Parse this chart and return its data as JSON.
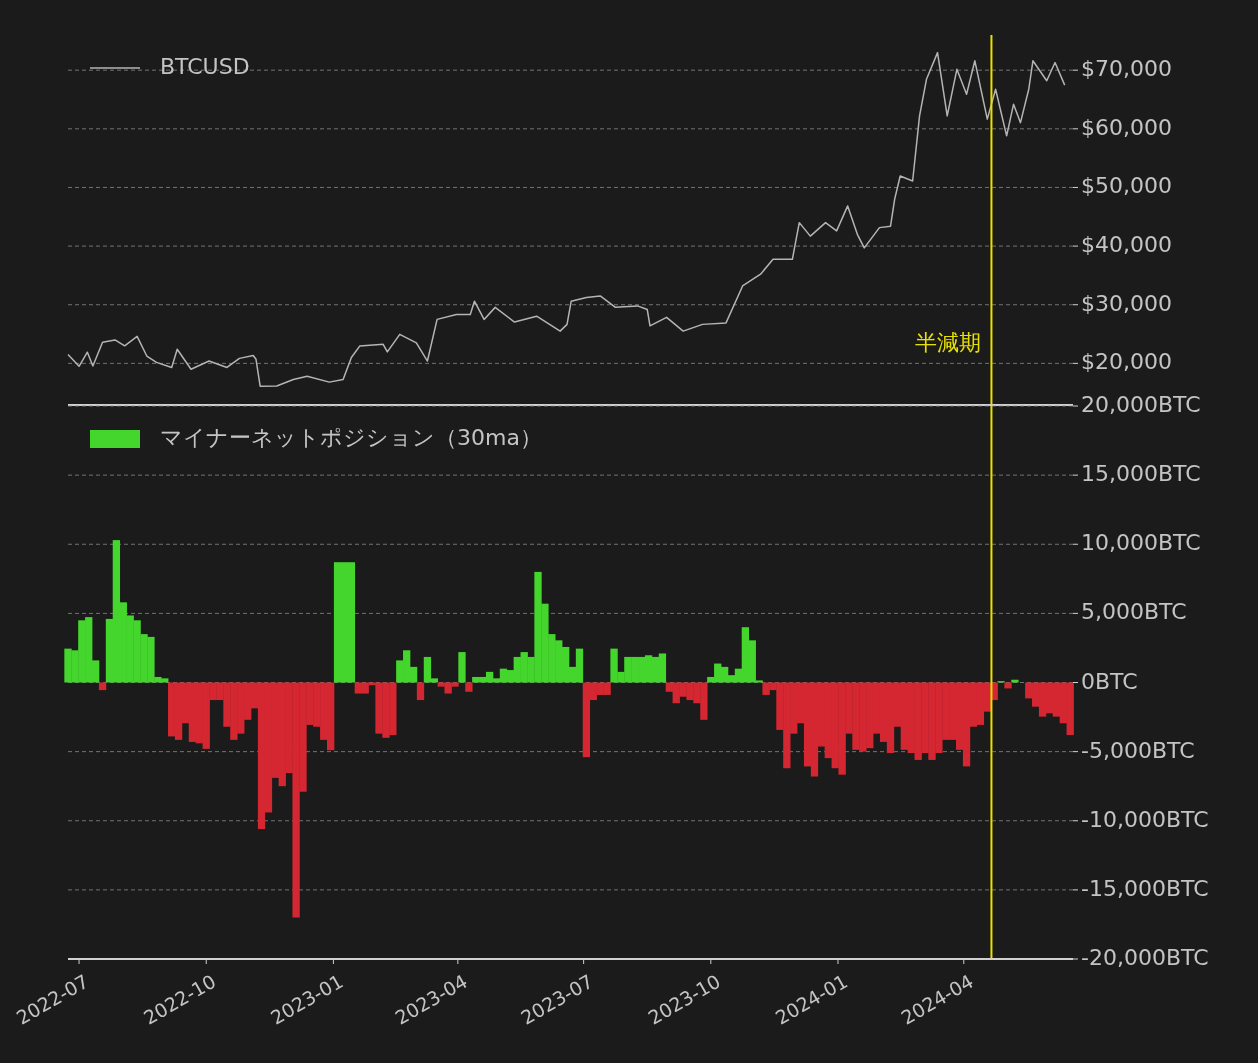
{
  "chart_data": [
    {
      "type": "line",
      "legend": "top left",
      "grid": "y",
      "tick_labels": "y",
      "xlim": [
        "2022-06-23",
        "2024-06-19"
      ],
      "ylim": [
        12900,
        76000
      ],
      "yticks": [
        {
          "value": 20000,
          "label": "$20,000"
        },
        {
          "value": 30000,
          "label": "$30,000"
        },
        {
          "value": 40000,
          "label": "$40,000"
        },
        {
          "value": 50000,
          "label": "$50,000"
        },
        {
          "value": 60000,
          "label": "$60,000"
        },
        {
          "value": 70000,
          "label": "$70,000"
        }
      ],
      "ref_lines": [
        {
          "axis": "x",
          "value": "2024-04-21",
          "label": "半減期",
          "color": "#e8e000"
        }
      ],
      "series": [
        {
          "name": "BTCUSD",
          "color": "#b4b4b4",
          "x": [
            "2022-06-23",
            "2022-07-01",
            "2022-07-07",
            "2022-07-11",
            "2022-07-18",
            "2022-07-27",
            "2022-08-03",
            "2022-08-12",
            "2022-08-19",
            "2022-08-26",
            "2022-09-06",
            "2022-09-10",
            "2022-09-20",
            "2022-10-03",
            "2022-10-16",
            "2022-10-25",
            "2022-11-04",
            "2022-11-06",
            "2022-11-09",
            "2022-11-21",
            "2022-12-03",
            "2022-12-13",
            "2022-12-29",
            "2023-01-08",
            "2023-01-14",
            "2023-01-20",
            "2023-02-06",
            "2023-02-09",
            "2023-02-18",
            "2023-03-02",
            "2023-03-10",
            "2023-03-17",
            "2023-03-31",
            "2023-04-10",
            "2023-04-13",
            "2023-04-20",
            "2023-04-28",
            "2023-05-12",
            "2023-05-28",
            "2023-06-14",
            "2023-06-19",
            "2023-06-22",
            "2023-07-03",
            "2023-07-13",
            "2023-07-24",
            "2023-08-09",
            "2023-08-16",
            "2023-08-18",
            "2023-08-30",
            "2023-09-11",
            "2023-09-25",
            "2023-10-12",
            "2023-10-24",
            "2023-11-06",
            "2023-11-15",
            "2023-11-29",
            "2023-12-04",
            "2023-12-12",
            "2023-12-23",
            "2023-12-31",
            "2024-01-08",
            "2024-01-15",
            "2024-01-20",
            "2024-01-31",
            "2024-02-08",
            "2024-02-11",
            "2024-02-15",
            "2024-02-24",
            "2024-02-29",
            "2024-03-05",
            "2024-03-13",
            "2024-03-20",
            "2024-03-27",
            "2024-04-03",
            "2024-04-09",
            "2024-04-18",
            "2024-04-24",
            "2024-05-02",
            "2024-05-07",
            "2024-05-12",
            "2024-05-18",
            "2024-05-21",
            "2024-05-31",
            "2024-06-06",
            "2024-06-13"
          ],
          "values": [
            21500,
            19500,
            21900,
            19550,
            23600,
            24000,
            23000,
            24600,
            21250,
            20170,
            19300,
            22400,
            19000,
            20400,
            19300,
            20850,
            21350,
            20700,
            16100,
            16150,
            17250,
            17800,
            16800,
            17250,
            21000,
            22950,
            23250,
            21950,
            24950,
            23500,
            20400,
            27500,
            28350,
            28350,
            30600,
            27500,
            29550,
            27050,
            28050,
            25500,
            26650,
            30600,
            31250,
            31500,
            29550,
            29800,
            29200,
            26400,
            27850,
            25500,
            26650,
            26900,
            33200,
            35200,
            37750,
            37750,
            44000,
            41700,
            44000,
            42600,
            46850,
            42000,
            39700,
            43150,
            43400,
            48000,
            51950,
            51100,
            62200,
            68450,
            73000,
            62200,
            70150,
            65900,
            71600,
            61650,
            66750,
            58800,
            64200,
            61050,
            66750,
            71600,
            68200,
            71300,
            67450
          ]
        }
      ]
    },
    {
      "type": "bar",
      "legend": "top left",
      "grid": "y",
      "xlim": [
        "2022-06-23",
        "2024-06-19"
      ],
      "ylim": [
        -20000,
        20000
      ],
      "xticks": [
        "2022-07",
        "2022-10",
        "2023-01",
        "2023-04",
        "2023-07",
        "2023-10",
        "2024-01",
        "2024-04"
      ],
      "yticks": [
        {
          "value": 20000,
          "label": "20,000BTC"
        },
        {
          "value": 15000,
          "label": "15,000BTC"
        },
        {
          "value": 10000,
          "label": "10,000BTC"
        },
        {
          "value": 5000,
          "label": "5,000BTC"
        },
        {
          "value": 0,
          "label": "0BTC"
        },
        {
          "value": -5000,
          "label": "-5,000BTC"
        },
        {
          "value": -10000,
          "label": "-10,000BTC"
        },
        {
          "value": -15000,
          "label": "-15,000BTC"
        },
        {
          "value": -20000,
          "label": "-20,000BTC"
        }
      ],
      "ref_lines": [
        {
          "axis": "x",
          "value": "2024-04-21",
          "color": "#e8e000"
        }
      ],
      "x": [
        "2022-06-23",
        "2022-06-28",
        "2022-07-03",
        "2022-07-08",
        "2022-07-13",
        "2022-07-18",
        "2022-07-23",
        "2022-07-28",
        "2022-08-02",
        "2022-08-07",
        "2022-08-12",
        "2022-08-17",
        "2022-08-22",
        "2022-08-27",
        "2022-09-01",
        "2022-09-06",
        "2022-09-11",
        "2022-09-16",
        "2022-09-21",
        "2022-09-26",
        "2022-10-01",
        "2022-10-06",
        "2022-10-11",
        "2022-10-16",
        "2022-10-21",
        "2022-10-26",
        "2022-10-31",
        "2022-11-05",
        "2022-11-10",
        "2022-11-15",
        "2022-11-20",
        "2022-11-25",
        "2022-11-30",
        "2022-12-05",
        "2022-12-10",
        "2022-12-15",
        "2022-12-20",
        "2022-12-25",
        "2022-12-30",
        "2023-01-04",
        "2023-01-09",
        "2023-01-14",
        "2023-01-19",
        "2023-01-24",
        "2023-01-29",
        "2023-02-03",
        "2023-02-08",
        "2023-02-13",
        "2023-02-18",
        "2023-02-23",
        "2023-02-28",
        "2023-03-05",
        "2023-03-10",
        "2023-03-15",
        "2023-03-20",
        "2023-03-25",
        "2023-03-30",
        "2023-04-04",
        "2023-04-09",
        "2023-04-14",
        "2023-04-19",
        "2023-04-24",
        "2023-04-29",
        "2023-05-04",
        "2023-05-09",
        "2023-05-14",
        "2023-05-19",
        "2023-05-24",
        "2023-05-29",
        "2023-06-03",
        "2023-06-08",
        "2023-06-13",
        "2023-06-18",
        "2023-06-23",
        "2023-06-28",
        "2023-07-03",
        "2023-07-08",
        "2023-07-13",
        "2023-07-18",
        "2023-07-23",
        "2023-07-28",
        "2023-08-02",
        "2023-08-07",
        "2023-08-12",
        "2023-08-17",
        "2023-08-22",
        "2023-08-27",
        "2023-09-01",
        "2023-09-06",
        "2023-09-11",
        "2023-09-16",
        "2023-09-21",
        "2023-09-26",
        "2023-10-01",
        "2023-10-06",
        "2023-10-11",
        "2023-10-16",
        "2023-10-21",
        "2023-10-26",
        "2023-10-31",
        "2023-11-05",
        "2023-11-10",
        "2023-11-15",
        "2023-11-20",
        "2023-11-25",
        "2023-11-30",
        "2023-12-05",
        "2023-12-10",
        "2023-12-15",
        "2023-12-20",
        "2023-12-25",
        "2023-12-30",
        "2024-01-04",
        "2024-01-09",
        "2024-01-14",
        "2024-01-19",
        "2024-01-24",
        "2024-01-29",
        "2024-02-03",
        "2024-02-08",
        "2024-02-13",
        "2024-02-18",
        "2024-02-23",
        "2024-02-28",
        "2024-03-04",
        "2024-03-09",
        "2024-03-14",
        "2024-03-19",
        "2024-03-24",
        "2024-03-29",
        "2024-04-03",
        "2024-04-08",
        "2024-04-13",
        "2024-04-18",
        "2024-04-23",
        "2024-04-28",
        "2024-05-03",
        "2024-05-08",
        "2024-05-13",
        "2024-05-18",
        "2024-05-23",
        "2024-05-28",
        "2024-06-02",
        "2024-06-07",
        "2024-06-12",
        "2024-06-17"
      ],
      "series": [
        {
          "name": "マイナーネットポジション（30ma）",
          "color": "#44d62c",
          "values": [
            2450,
            2330,
            4500,
            4730,
            1600,
            null,
            4600,
            10300,
            5800,
            4850,
            4500,
            3500,
            3300,
            400,
            300,
            null,
            null,
            null,
            null,
            null,
            null,
            null,
            null,
            null,
            null,
            null,
            null,
            null,
            null,
            null,
            null,
            null,
            null,
            null,
            null,
            null,
            null,
            null,
            null,
            8700,
            8700,
            8700,
            null,
            null,
            null,
            null,
            null,
            null,
            1600,
            2330,
            1130,
            null,
            1850,
            300,
            null,
            null,
            null,
            2200,
            null,
            400,
            400,
            770,
            300,
            1000,
            900,
            1850,
            2200,
            1850,
            8000,
            5700,
            3500,
            3050,
            2570,
            1130,
            2450,
            null,
            null,
            null,
            null,
            2450,
            770,
            1850,
            1850,
            1850,
            1970,
            1850,
            2100,
            null,
            null,
            null,
            null,
            null,
            null,
            400,
            1370,
            1130,
            530,
            1000,
            4000,
            3050,
            150,
            null,
            null,
            null,
            null,
            null,
            null,
            null,
            null,
            null,
            null,
            null,
            null,
            null,
            null,
            null,
            null,
            null,
            null,
            null,
            null,
            null,
            null,
            null,
            null,
            null,
            null,
            null,
            null,
            null,
            null,
            null,
            null,
            null,
            null,
            100,
            null,
            200,
            null,
            null,
            null,
            null,
            null,
            null,
            null,
            null
          ]
        },
        {
          "color": "#d42731",
          "values": [
            null,
            null,
            null,
            null,
            null,
            -550,
            null,
            null,
            null,
            null,
            null,
            null,
            null,
            null,
            null,
            -3900,
            -4150,
            -2950,
            -4300,
            -4400,
            -4800,
            -1270,
            -1270,
            -3200,
            -4150,
            -3700,
            -2700,
            -1870,
            -10600,
            -9400,
            -6900,
            -7500,
            -6550,
            -17000,
            -7900,
            -3070,
            -3200,
            -4150,
            -4900,
            null,
            null,
            null,
            -800,
            -800,
            -200,
            -3700,
            -4000,
            -3800,
            null,
            null,
            null,
            -1270,
            null,
            null,
            -300,
            -800,
            -300,
            null,
            -670,
            null,
            null,
            null,
            null,
            null,
            null,
            null,
            null,
            null,
            null,
            null,
            null,
            null,
            null,
            null,
            null,
            -5400,
            -1270,
            -900,
            -900,
            null,
            null,
            null,
            null,
            null,
            null,
            null,
            null,
            -670,
            -1500,
            -1030,
            -1270,
            -1500,
            -2700,
            null,
            null,
            null,
            null,
            null,
            null,
            null,
            null,
            -900,
            -550,
            -3430,
            -6200,
            -3700,
            -2950,
            -6070,
            -6800,
            -4630,
            -5470,
            -6200,
            -6670,
            -3700,
            -4870,
            -5000,
            -4750,
            -3700,
            -4300,
            -5100,
            -3200,
            -4870,
            -5100,
            -5600,
            -5100,
            -5600,
            -5100,
            -4150,
            -4150,
            -4870,
            -6070,
            -3200,
            -3070,
            -2110,
            -1270,
            null,
            -430,
            null,
            null,
            -1150,
            -1750,
            -2470,
            -2230,
            -2470,
            -2950,
            -3800
          ]
        }
      ]
    }
  ]
}
